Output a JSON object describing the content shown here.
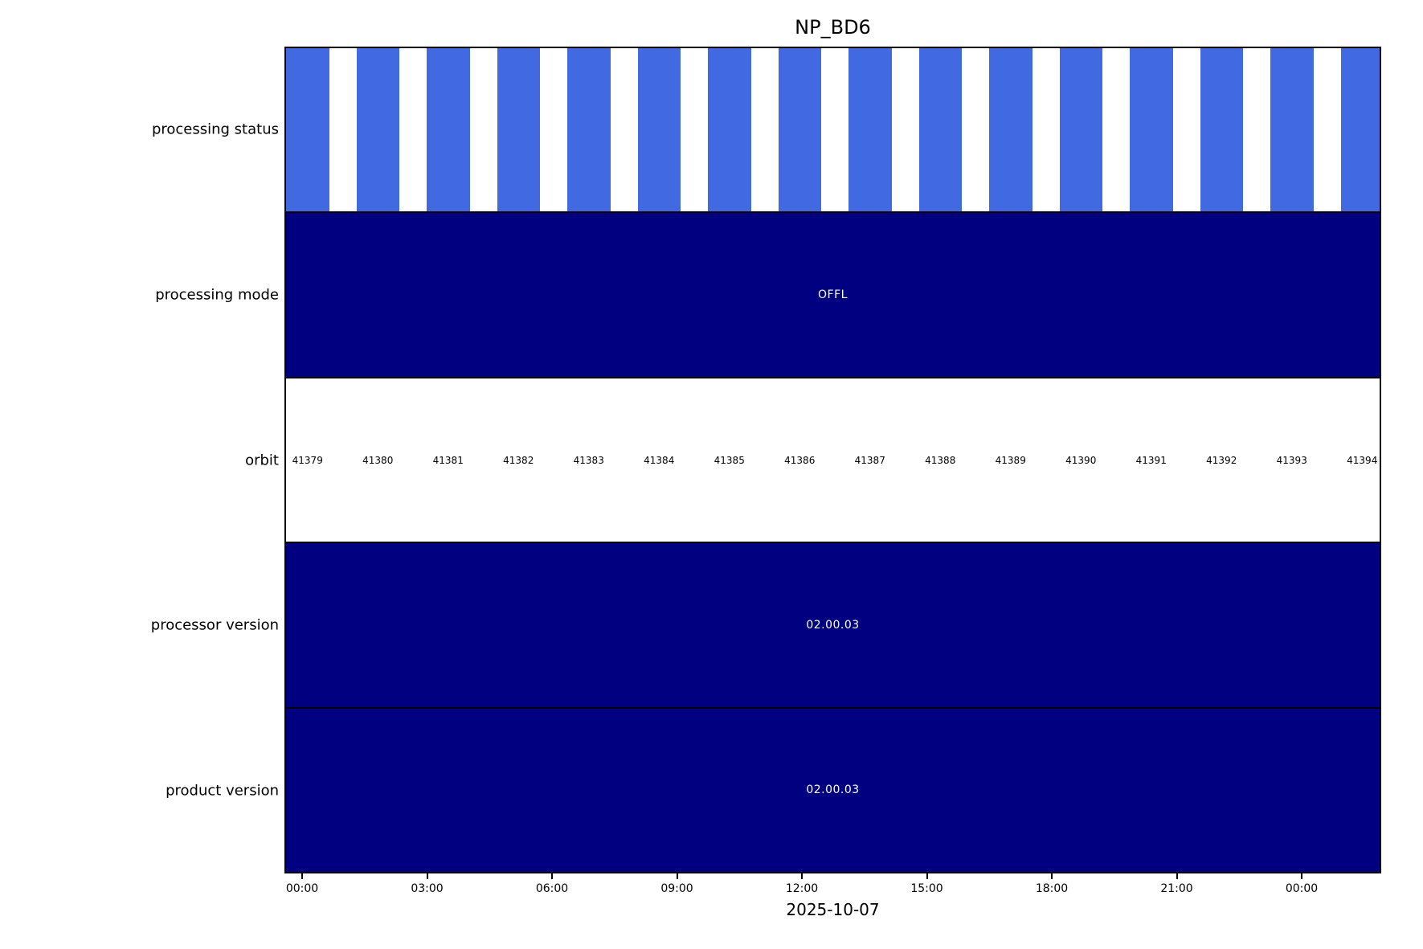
{
  "colors": {
    "bar_blue": "#4169E1",
    "navy": "#000080",
    "black": "#000000",
    "white": "#ffffff"
  },
  "chart_data": {
    "type": "timeline-status",
    "title": "NP_BD6",
    "xlabel": "2025-10-07",
    "x_axis": {
      "tick_labels": [
        "00:00",
        "03:00",
        "06:00",
        "09:00",
        "12:00",
        "15:00",
        "18:00",
        "21:00",
        "00:00"
      ],
      "tick_interval_hours": 3
    },
    "legend": "none",
    "grid": false,
    "rows": [
      {
        "label": "processing status",
        "type": "bars",
        "bar_color": "#4169E1",
        "bar_count": 16
      },
      {
        "label": "processing mode",
        "type": "solid",
        "fill_color": "#000080",
        "value": "OFFL"
      },
      {
        "label": "orbit",
        "type": "labels",
        "values": [
          "41379",
          "41380",
          "41381",
          "41382",
          "41383",
          "41384",
          "41385",
          "41386",
          "41387",
          "41388",
          "41389",
          "41390",
          "41391",
          "41392",
          "41393",
          "41394"
        ]
      },
      {
        "label": "processor version",
        "type": "solid",
        "fill_color": "#000080",
        "value": "02.00.03"
      },
      {
        "label": "product version",
        "type": "solid",
        "fill_color": "#000080",
        "value": "02.00.03"
      }
    ]
  }
}
